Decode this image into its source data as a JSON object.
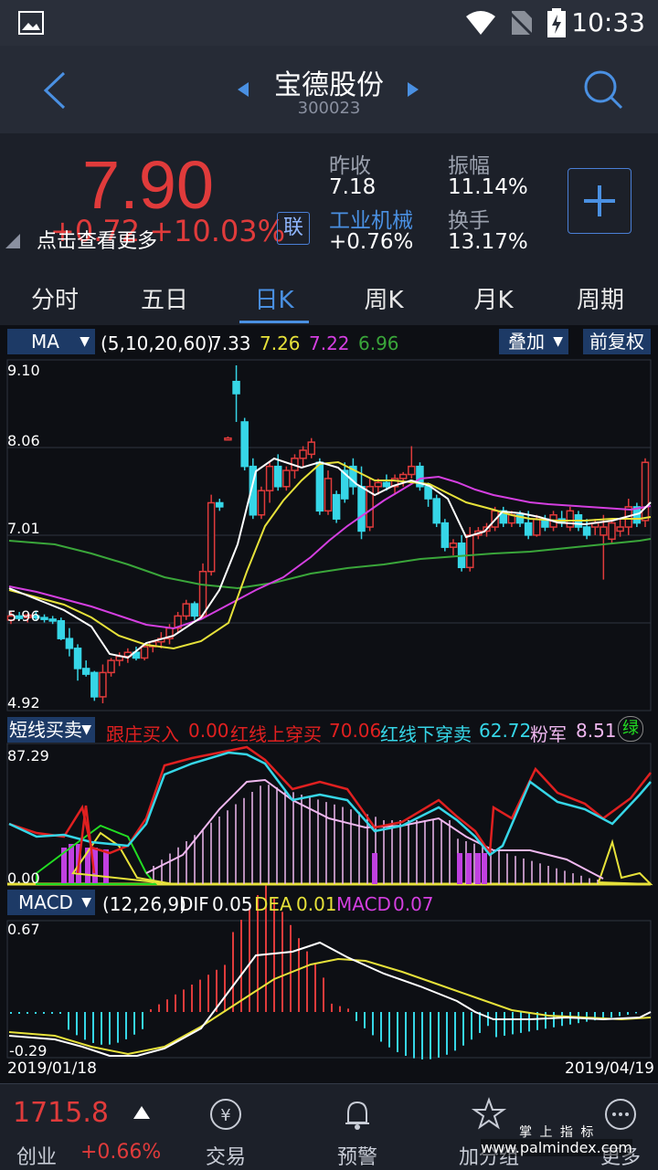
{
  "status": {
    "time": "10:33"
  },
  "header": {
    "title": "宝德股份",
    "code": "300023"
  },
  "quote": {
    "price": "7.90",
    "change": "+0.72  +10.03%",
    "hint": "点击查看更多",
    "link_badge": "联",
    "prev_close_label": "昨收",
    "prev_close": "7.18",
    "amplitude_label": "振幅",
    "amplitude": "11.14%",
    "industry_label": "工业机械",
    "industry_change": "+0.76%",
    "turnover_label": "换手",
    "turnover": "13.17%"
  },
  "tabs": [
    "分时",
    "五日",
    "日K",
    "周K",
    "月K",
    "周期"
  ],
  "active_tab": "日K",
  "ma_legend": {
    "label": "MA",
    "params": "(5,10,20,60)",
    "v1": "7.33",
    "v2": "7.26",
    "v3": "7.22",
    "v4": "6.96",
    "overlay": "叠加",
    "adjust": "前复权"
  },
  "price_axis": [
    "9.10",
    "8.06",
    "7.01",
    "5.96",
    "4.92"
  ],
  "indicator2": {
    "label": "短线买卖",
    "a_label": "跟庄买入",
    "a": "0.00",
    "b_label": "红线上穿买",
    "b": "70.06",
    "c_label": "红线下穿卖",
    "c": "62.72",
    "d_label": "粉军",
    "d": "8.51",
    "badge": "绿",
    "top": "87.29",
    "bottom": "0.00"
  },
  "macd": {
    "label": "MACD",
    "params": "(12,26,9)",
    "dif_label": "DIF",
    "dif": "0.05",
    "dea_label": "DEA",
    "dea": "0.01",
    "macd_label": "MACD",
    "macd": "0.07",
    "top": "0.67",
    "bottom": "-0.29"
  },
  "dates": {
    "start": "2019/01/18",
    "end": "2019/04/19"
  },
  "bottom_nav": {
    "index_value": "1715.8",
    "index_name": "创业",
    "index_change": "+0.66%",
    "items": [
      "交易",
      "预警",
      "加分组",
      "更多"
    ]
  },
  "watermark": {
    "line1": "掌 上 指 标",
    "line2": "www.palmindex.com"
  },
  "colors": {
    "up": "#e03b3b",
    "down": "#36d6e7",
    "ma5": "#ffffff",
    "ma10": "#e6e13a",
    "ma20": "#d43fe0",
    "ma60": "#3aa63a"
  },
  "chart_data": {
    "type": "candlestick",
    "ylim": [
      4.92,
      9.1
    ],
    "candles": [
      {
        "o": 5.95,
        "h": 6.05,
        "l": 5.9,
        "c": 6.0
      },
      {
        "o": 6.0,
        "h": 6.05,
        "l": 5.95,
        "c": 5.97
      },
      {
        "o": 5.98,
        "h": 6.03,
        "l": 5.92,
        "c": 6.01
      },
      {
        "o": 6.0,
        "h": 6.06,
        "l": 5.94,
        "c": 5.98
      },
      {
        "o": 5.98,
        "h": 6.02,
        "l": 5.92,
        "c": 5.96
      },
      {
        "o": 5.96,
        "h": 6.0,
        "l": 5.9,
        "c": 5.94
      },
      {
        "o": 5.94,
        "h": 5.98,
        "l": 5.7,
        "c": 5.72
      },
      {
        "o": 5.72,
        "h": 5.85,
        "l": 5.5,
        "c": 5.6
      },
      {
        "o": 5.6,
        "h": 5.65,
        "l": 5.2,
        "c": 5.35
      },
      {
        "o": 5.35,
        "h": 5.45,
        "l": 5.25,
        "c": 5.28
      },
      {
        "o": 5.3,
        "h": 5.32,
        "l": 4.95,
        "c": 5.0
      },
      {
        "o": 5.0,
        "h": 5.4,
        "l": 4.92,
        "c": 5.3
      },
      {
        "o": 5.3,
        "h": 5.48,
        "l": 5.25,
        "c": 5.45
      },
      {
        "o": 5.45,
        "h": 5.55,
        "l": 5.38,
        "c": 5.5
      },
      {
        "o": 5.5,
        "h": 5.6,
        "l": 5.42,
        "c": 5.55
      },
      {
        "o": 5.55,
        "h": 5.62,
        "l": 5.45,
        "c": 5.48
      },
      {
        "o": 5.48,
        "h": 5.65,
        "l": 5.45,
        "c": 5.62
      },
      {
        "o": 5.62,
        "h": 5.7,
        "l": 5.55,
        "c": 5.68
      },
      {
        "o": 5.68,
        "h": 5.8,
        "l": 5.6,
        "c": 5.72
      },
      {
        "o": 5.72,
        "h": 5.9,
        "l": 5.65,
        "c": 5.85
      },
      {
        "o": 5.85,
        "h": 6.05,
        "l": 5.8,
        "c": 6.0
      },
      {
        "o": 6.0,
        "h": 6.2,
        "l": 5.95,
        "c": 6.15
      },
      {
        "o": 6.15,
        "h": 6.18,
        "l": 5.95,
        "c": 6.0
      },
      {
        "o": 6.0,
        "h": 6.65,
        "l": 5.98,
        "c": 6.55
      },
      {
        "o": 6.55,
        "h": 7.5,
        "l": 6.5,
        "c": 7.4
      },
      {
        "o": 7.4,
        "h": 7.45,
        "l": 7.3,
        "c": 7.35
      },
      {
        "o": 8.2,
        "h": 8.22,
        "l": 8.18,
        "c": 8.2
      },
      {
        "o": 8.9,
        "h": 9.1,
        "l": 8.4,
        "c": 8.75
      },
      {
        "o": 8.4,
        "h": 8.45,
        "l": 7.8,
        "c": 7.85
      },
      {
        "o": 7.85,
        "h": 7.95,
        "l": 7.2,
        "c": 7.25
      },
      {
        "o": 7.25,
        "h": 7.6,
        "l": 7.2,
        "c": 7.55
      },
      {
        "o": 7.55,
        "h": 7.9,
        "l": 7.4,
        "c": 7.85
      },
      {
        "o": 7.85,
        "h": 8.0,
        "l": 7.55,
        "c": 7.6
      },
      {
        "o": 7.6,
        "h": 7.85,
        "l": 7.55,
        "c": 7.8
      },
      {
        "o": 7.8,
        "h": 8.0,
        "l": 7.7,
        "c": 7.95
      },
      {
        "o": 7.95,
        "h": 8.1,
        "l": 7.85,
        "c": 8.05
      },
      {
        "o": 8.0,
        "h": 8.2,
        "l": 7.95,
        "c": 8.15
      },
      {
        "o": 7.9,
        "h": 7.95,
        "l": 7.25,
        "c": 7.3
      },
      {
        "o": 7.3,
        "h": 7.8,
        "l": 7.25,
        "c": 7.7
      },
      {
        "o": 7.5,
        "h": 7.55,
        "l": 7.15,
        "c": 7.2
      },
      {
        "o": 7.8,
        "h": 7.9,
        "l": 7.4,
        "c": 7.45
      },
      {
        "o": 7.85,
        "h": 7.95,
        "l": 7.5,
        "c": 7.6
      },
      {
        "o": 7.6,
        "h": 7.85,
        "l": 6.95,
        "c": 7.05
      },
      {
        "o": 7.1,
        "h": 7.7,
        "l": 7.05,
        "c": 7.6
      },
      {
        "o": 7.6,
        "h": 7.7,
        "l": 7.5,
        "c": 7.65
      },
      {
        "o": 7.65,
        "h": 7.75,
        "l": 7.55,
        "c": 7.6
      },
      {
        "o": 7.6,
        "h": 7.75,
        "l": 7.5,
        "c": 7.7
      },
      {
        "o": 7.7,
        "h": 7.78,
        "l": 7.6,
        "c": 7.75
      },
      {
        "o": 7.75,
        "h": 8.1,
        "l": 7.7,
        "c": 7.85
      },
      {
        "o": 7.85,
        "h": 7.9,
        "l": 7.55,
        "c": 7.6
      },
      {
        "o": 7.6,
        "h": 7.65,
        "l": 7.35,
        "c": 7.45
      },
      {
        "o": 7.45,
        "h": 7.5,
        "l": 7.1,
        "c": 7.15
      },
      {
        "o": 7.15,
        "h": 7.2,
        "l": 6.8,
        "c": 6.85
      },
      {
        "o": 6.85,
        "h": 6.95,
        "l": 6.75,
        "c": 6.9
      },
      {
        "o": 6.9,
        "h": 7.0,
        "l": 6.55,
        "c": 6.6
      },
      {
        "o": 6.6,
        "h": 7.1,
        "l": 6.55,
        "c": 7.0
      },
      {
        "o": 7.0,
        "h": 7.1,
        "l": 6.95,
        "c": 7.05
      },
      {
        "o": 7.05,
        "h": 7.15,
        "l": 6.98,
        "c": 7.1
      },
      {
        "o": 7.1,
        "h": 7.35,
        "l": 7.05,
        "c": 7.3
      },
      {
        "o": 7.3,
        "h": 7.35,
        "l": 7.1,
        "c": 7.15
      },
      {
        "o": 7.15,
        "h": 7.3,
        "l": 7.1,
        "c": 7.25
      },
      {
        "o": 7.25,
        "h": 7.3,
        "l": 7.1,
        "c": 7.15
      },
      {
        "o": 7.15,
        "h": 7.3,
        "l": 6.95,
        "c": 7.0
      },
      {
        "o": 7.0,
        "h": 7.25,
        "l": 6.98,
        "c": 7.2
      },
      {
        "o": 7.2,
        "h": 7.25,
        "l": 7.05,
        "c": 7.1
      },
      {
        "o": 7.1,
        "h": 7.3,
        "l": 7.05,
        "c": 7.25
      },
      {
        "o": 7.2,
        "h": 7.3,
        "l": 7.1,
        "c": 7.15
      },
      {
        "o": 7.1,
        "h": 7.35,
        "l": 7.05,
        "c": 7.3
      },
      {
        "o": 7.25,
        "h": 7.3,
        "l": 7.05,
        "c": 7.1
      },
      {
        "o": 7.1,
        "h": 7.2,
        "l": 6.95,
        "c": 7.0
      },
      {
        "o": 7.1,
        "h": 7.2,
        "l": 7.0,
        "c": 7.15
      },
      {
        "o": 7.0,
        "h": 7.25,
        "l": 6.45,
        "c": 7.1
      },
      {
        "o": 6.95,
        "h": 7.2,
        "l": 6.9,
        "c": 7.15
      },
      {
        "o": 7.05,
        "h": 7.2,
        "l": 6.98,
        "c": 7.1
      },
      {
        "o": 7.1,
        "h": 7.45,
        "l": 7.0,
        "c": 7.35
      },
      {
        "o": 7.35,
        "h": 7.4,
        "l": 7.1,
        "c": 7.15
      },
      {
        "o": 7.18,
        "h": 7.95,
        "l": 7.1,
        "c": 7.9
      }
    ]
  }
}
